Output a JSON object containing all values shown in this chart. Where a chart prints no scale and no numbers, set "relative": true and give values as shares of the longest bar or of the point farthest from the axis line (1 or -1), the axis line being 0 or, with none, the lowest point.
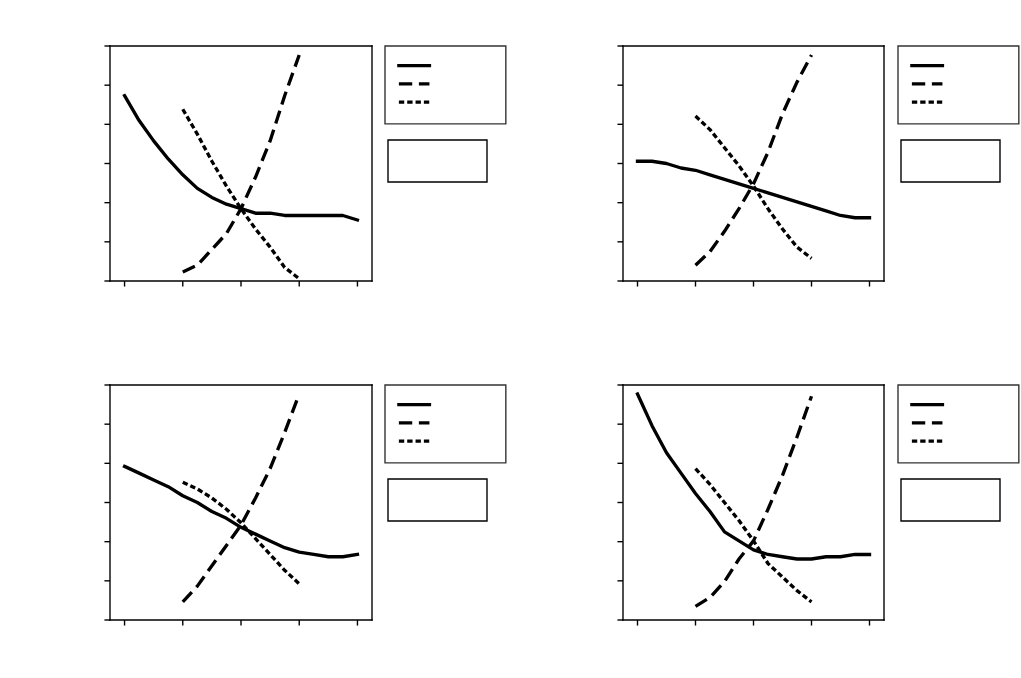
{
  "chart_data": [
    {
      "type": "line",
      "relative": true,
      "categories": [
        null,
        null,
        null,
        null,
        null,
        null,
        null,
        null,
        null,
        null,
        null,
        null,
        null,
        null,
        null,
        null,
        null
      ],
      "series": [
        {
          "color": "#000000",
          "line_style": "solid",
          "values": [
            0.82,
            0.71,
            0.62,
            0.54,
            0.47,
            0.41,
            0.37,
            0.34,
            0.32,
            0.3,
            0.3,
            0.29,
            0.29,
            0.29,
            0.29,
            0.29,
            0.27
          ]
        },
        {
          "color": "#000000",
          "line_style": "dashed",
          "values": [
            null,
            null,
            null,
            null,
            0.04,
            0.07,
            0.14,
            0.21,
            0.32,
            0.46,
            0.62,
            0.82,
            1,
            null,
            null,
            null,
            null
          ]
        },
        {
          "color": "#000000",
          "line_style": "dotted",
          "values": [
            null,
            null,
            null,
            null,
            0.76,
            0.65,
            0.53,
            0.42,
            0.32,
            0.23,
            0.15,
            0.06,
            0.01,
            null,
            null,
            null,
            null
          ]
        }
      ]
    },
    {
      "type": "line",
      "relative": true,
      "categories": [
        null,
        null,
        null,
        null,
        null,
        null,
        null,
        null,
        null,
        null,
        null,
        null,
        null,
        null,
        null,
        null,
        null
      ],
      "series": [
        {
          "color": "#000000",
          "line_style": "solid",
          "values": [
            0.53,
            0.53,
            0.52,
            0.5,
            0.49,
            0.47,
            0.45,
            0.43,
            0.41,
            0.39,
            0.37,
            0.35,
            0.33,
            0.31,
            0.29,
            0.28,
            0.28
          ]
        },
        {
          "color": "#000000",
          "line_style": "dashed",
          "values": [
            null,
            null,
            null,
            null,
            0.07,
            0.13,
            0.22,
            0.32,
            0.43,
            0.57,
            0.74,
            0.88,
            1,
            null,
            null,
            null,
            null
          ]
        },
        {
          "color": "#000000",
          "line_style": "dotted",
          "values": [
            null,
            null,
            null,
            null,
            0.73,
            0.67,
            0.59,
            0.51,
            0.42,
            0.32,
            0.23,
            0.15,
            0.1,
            null,
            null,
            null,
            null
          ]
        }
      ]
    },
    {
      "type": "line",
      "relative": true,
      "categories": [
        null,
        null,
        null,
        null,
        null,
        null,
        null,
        null,
        null,
        null,
        null,
        null,
        null,
        null,
        null,
        null,
        null
      ],
      "series": [
        {
          "color": "#000000",
          "line_style": "solid",
          "values": [
            0.68,
            0.65,
            0.62,
            0.59,
            0.55,
            0.52,
            0.48,
            0.45,
            0.41,
            0.38,
            0.35,
            0.32,
            0.3,
            0.29,
            0.28,
            0.28,
            0.29
          ]
        },
        {
          "color": "#000000",
          "line_style": "dashed",
          "values": [
            null,
            null,
            null,
            null,
            0.08,
            0.15,
            0.24,
            0.33,
            0.42,
            0.54,
            0.67,
            0.83,
            1,
            null,
            null,
            null,
            null
          ]
        },
        {
          "color": "#000000",
          "line_style": "dotted",
          "values": [
            null,
            null,
            null,
            null,
            0.61,
            0.58,
            0.54,
            0.49,
            0.43,
            0.36,
            0.29,
            0.22,
            0.16,
            null,
            null,
            null,
            null
          ]
        }
      ]
    },
    {
      "type": "line",
      "relative": true,
      "categories": [
        null,
        null,
        null,
        null,
        null,
        null,
        null,
        null,
        null,
        null,
        null,
        null,
        null,
        null,
        null,
        null,
        null
      ],
      "series": [
        {
          "color": "#000000",
          "line_style": "solid",
          "values": [
            1.0,
            0.86,
            0.74,
            0.65,
            0.56,
            0.48,
            0.39,
            0.35,
            0.31,
            0.29,
            0.28,
            0.27,
            0.27,
            0.28,
            0.28,
            0.29,
            0.29
          ]
        },
        {
          "color": "#000000",
          "line_style": "dashed",
          "values": [
            null,
            null,
            null,
            null,
            0.06,
            0.1,
            0.17,
            0.27,
            0.35,
            0.49,
            0.64,
            0.81,
            0.99,
            null,
            null,
            null,
            null
          ]
        },
        {
          "color": "#000000",
          "line_style": "dotted",
          "values": [
            null,
            null,
            null,
            null,
            0.67,
            0.6,
            0.52,
            0.44,
            0.35,
            0.25,
            0.19,
            0.13,
            0.08,
            null,
            null,
            null,
            null
          ]
        }
      ]
    }
  ]
}
